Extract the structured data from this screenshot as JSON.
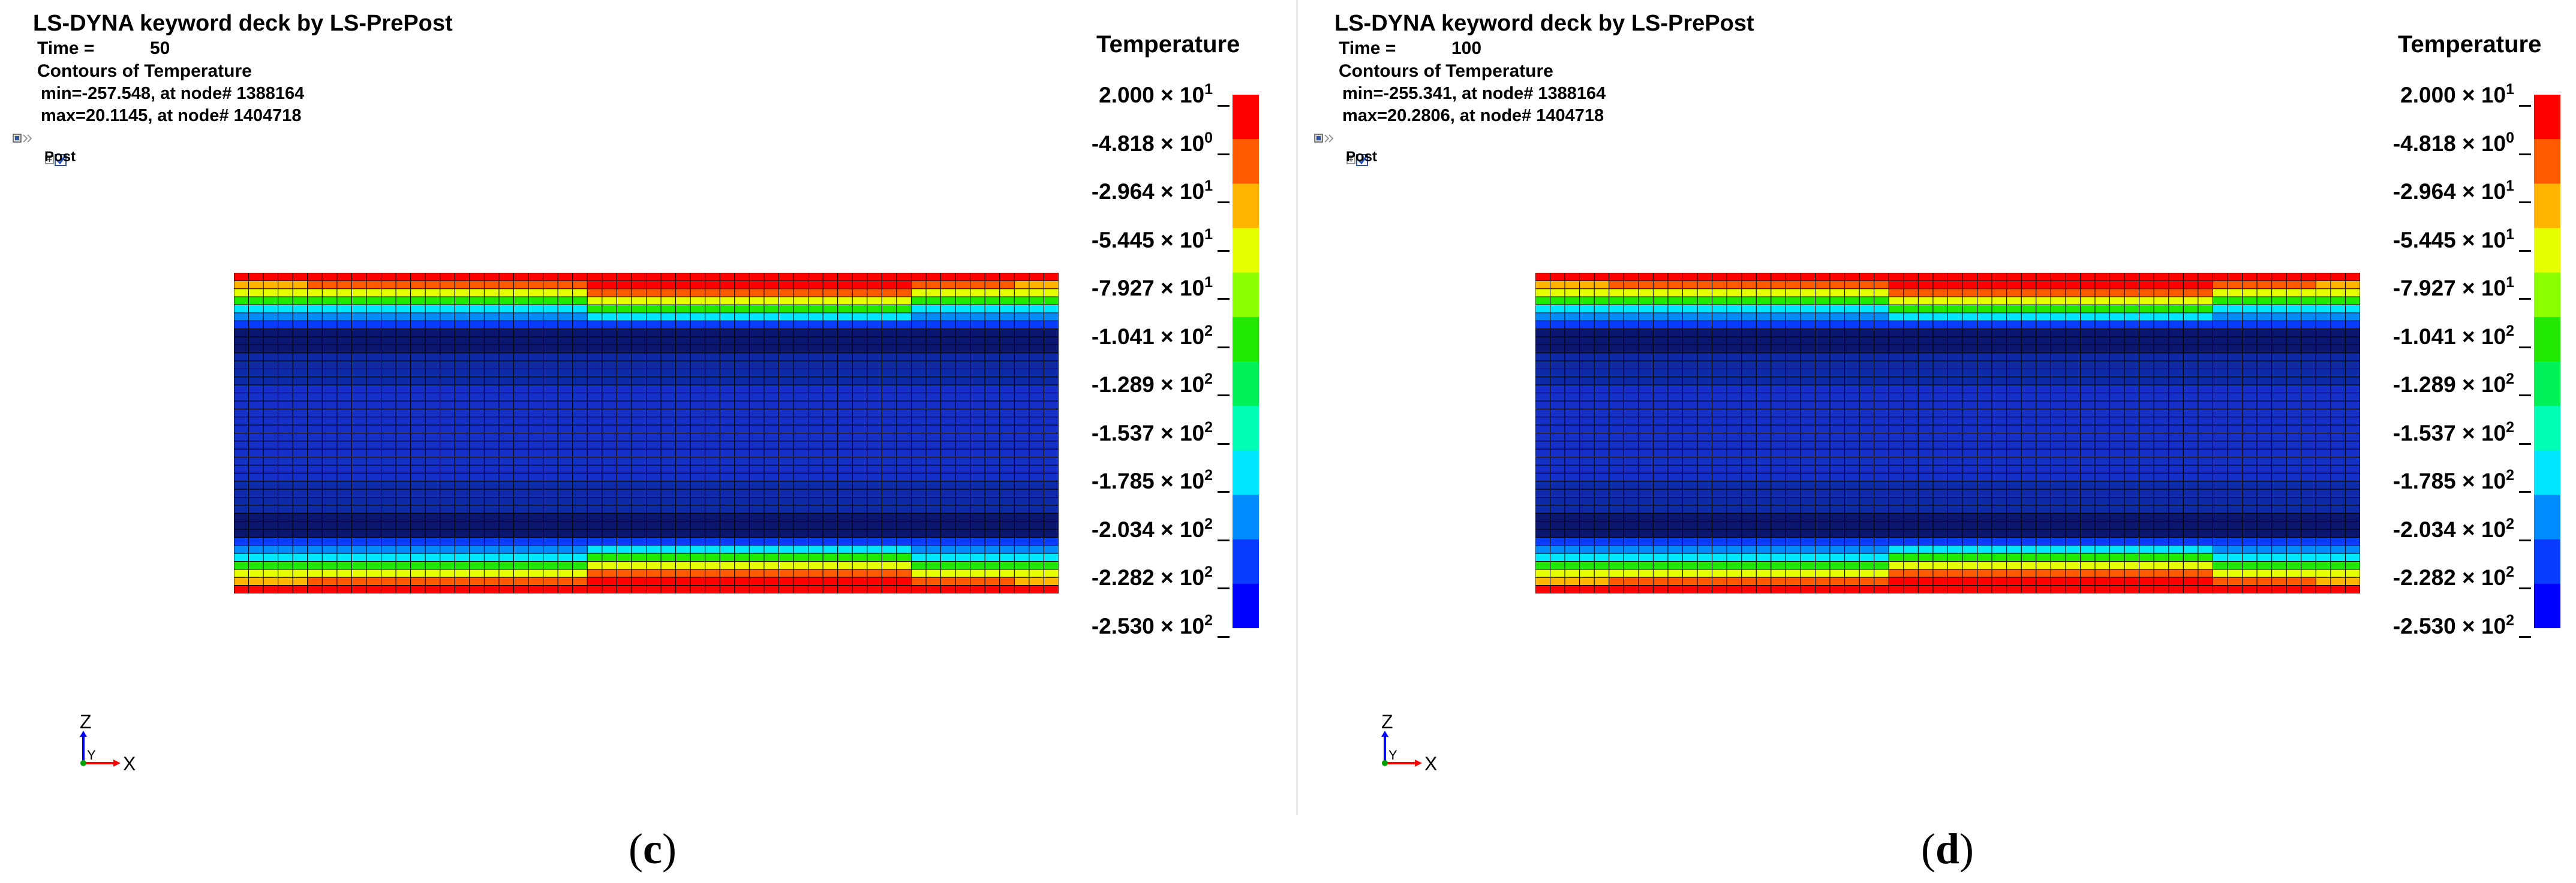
{
  "panels": [
    {
      "title": "LS-DYNA keyword deck by LS-PrePost",
      "time_label": "Time =",
      "time_value": "50",
      "contour_label": "Contours of Temperature",
      "min_text": "min=-257.548, at node# 1388164",
      "max_text": "max=20.1145, at node# 1404718",
      "post_label": "Post",
      "legend_title": "Temperature",
      "axis_z": "Z",
      "axis_y": "Y",
      "axis_x": "X",
      "caption_open": "(",
      "caption_letter": "c",
      "caption_close": ")",
      "hot_band_shift": "left"
    },
    {
      "title": "LS-DYNA keyword deck by LS-PrePost",
      "time_label": "Time =",
      "time_value": "100",
      "contour_label": "Contours of Temperature",
      "min_text": "min=-255.341, at node# 1388164",
      "max_text": "max=20.2806, at node# 1404718",
      "post_label": "Post",
      "legend_title": "Temperature",
      "axis_z": "Z",
      "axis_y": "Y",
      "axis_x": "X",
      "caption_open": "(",
      "caption_letter": "d",
      "caption_close": ")",
      "hot_band_shift": "left"
    }
  ],
  "legend_ticks": [
    {
      "mantissa": "2.000",
      "exponent": "1"
    },
    {
      "mantissa": "-4.818",
      "exponent": "0"
    },
    {
      "mantissa": "-2.964",
      "exponent": "1"
    },
    {
      "mantissa": "-5.445",
      "exponent": "1"
    },
    {
      "mantissa": "-7.927",
      "exponent": "1"
    },
    {
      "mantissa": "-1.041",
      "exponent": "2"
    },
    {
      "mantissa": "-1.289",
      "exponent": "2"
    },
    {
      "mantissa": "-1.537",
      "exponent": "2"
    },
    {
      "mantissa": "-1.785",
      "exponent": "2"
    },
    {
      "mantissa": "-2.034",
      "exponent": "2"
    },
    {
      "mantissa": "-2.282",
      "exponent": "2"
    },
    {
      "mantissa": "-2.530",
      "exponent": "2"
    }
  ],
  "times_sign": "×",
  "base_ten": "10",
  "colors": {
    "palette_top_to_bottom": [
      "#ff0000",
      "#ff5a00",
      "#ffb400",
      "#e6ff00",
      "#8cff00",
      "#20e800",
      "#00f05a",
      "#00ffb4",
      "#00e6ff",
      "#008cff",
      "#0a3cff",
      "#0000ff"
    ],
    "mesh_blue": "#1530c8",
    "mesh_deep_blue": "#0a1670",
    "mesh_lines": "#000000",
    "axis_z": "#0000ff",
    "axis_x": "#ff0000",
    "axis_y": "#00a000"
  }
}
